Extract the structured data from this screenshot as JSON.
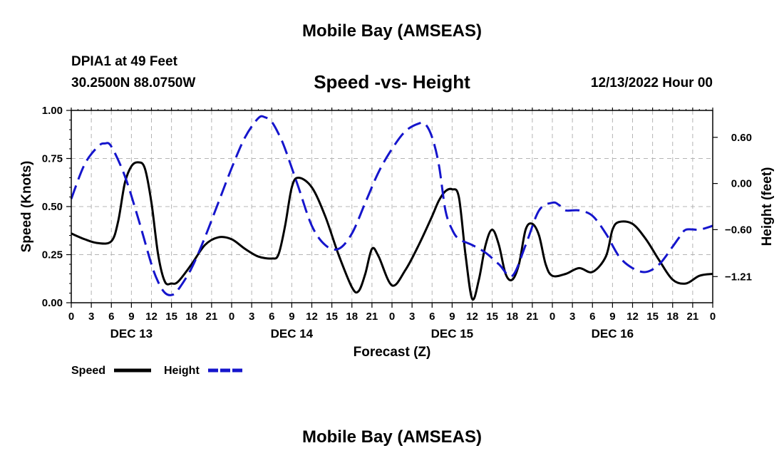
{
  "header": {
    "title": "Mobile Bay (AMSEAS)",
    "station": "DPIA1 at 49 Feet",
    "coordinates": "30.2500N  88.0750W",
    "subtitle": "Speed -vs- Height",
    "datetime": "12/13/2022 Hour 00",
    "bottom_title": "Mobile Bay (AMSEAS)"
  },
  "chart_data": {
    "type": "line",
    "xlabel": "Forecast (Z)",
    "ylabel_left": "Speed (Knots)",
    "ylabel_right": "Height (feet)",
    "x_hours_range": [
      0,
      96
    ],
    "ylim_left": [
      0,
      1.0
    ],
    "ylim_right": [
      -1.55,
      0.95
    ],
    "left_ticks": [
      "0.00",
      "0.25",
      "0.50",
      "0.75",
      "1.00"
    ],
    "left_tick_values": [
      0,
      0.25,
      0.5,
      0.75,
      1.0
    ],
    "right_ticks": [
      "0.60",
      "0.00",
      "−0.60",
      "−1.21"
    ],
    "right_tick_values": [
      0.6,
      0.0,
      -0.6,
      -1.21
    ],
    "x_tick_labels": [
      "0",
      "3",
      "6",
      "9",
      "12",
      "15",
      "18",
      "21",
      "0",
      "3",
      "6",
      "9",
      "12",
      "15",
      "18",
      "21",
      "0",
      "3",
      "6",
      "9",
      "12",
      "15",
      "18",
      "21",
      "0",
      "3",
      "6",
      "9",
      "12",
      "15",
      "18",
      "21",
      "0"
    ],
    "day_labels": [
      {
        "label": "DEC 13",
        "hour": 9
      },
      {
        "label": "DEC 14",
        "hour": 33
      },
      {
        "label": "DEC 15",
        "hour": 57
      },
      {
        "label": "DEC 16",
        "hour": 81
      }
    ],
    "series": [
      {
        "name": "Speed",
        "axis": "left",
        "color": "#000000",
        "style": "solid",
        "x": [
          0,
          2,
          4,
          6,
          7,
          8,
          9,
          10,
          11,
          12,
          13,
          14,
          15,
          16,
          18,
          20,
          22,
          24,
          26,
          28,
          30,
          31,
          32,
          33,
          34,
          36,
          38,
          40,
          42,
          43,
          44,
          45,
          46,
          48,
          50,
          52,
          54,
          55,
          56,
          57,
          58,
          59,
          60,
          61,
          62,
          63,
          64,
          65,
          66,
          67,
          68,
          69,
          70,
          71,
          72,
          74,
          76,
          78,
          80,
          81,
          82,
          84,
          86,
          88,
          90,
          92,
          94,
          96
        ],
        "y": [
          0.36,
          0.33,
          0.31,
          0.32,
          0.42,
          0.62,
          0.71,
          0.73,
          0.7,
          0.52,
          0.25,
          0.11,
          0.1,
          0.11,
          0.2,
          0.3,
          0.34,
          0.33,
          0.28,
          0.24,
          0.23,
          0.25,
          0.4,
          0.6,
          0.65,
          0.6,
          0.45,
          0.25,
          0.08,
          0.06,
          0.15,
          0.28,
          0.24,
          0.09,
          0.17,
          0.3,
          0.45,
          0.53,
          0.58,
          0.59,
          0.55,
          0.25,
          0.02,
          0.12,
          0.3,
          0.38,
          0.3,
          0.15,
          0.12,
          0.2,
          0.38,
          0.41,
          0.35,
          0.2,
          0.14,
          0.15,
          0.18,
          0.16,
          0.24,
          0.38,
          0.42,
          0.41,
          0.33,
          0.22,
          0.12,
          0.1,
          0.14,
          0.15
        ]
      },
      {
        "name": "Height",
        "axis": "right",
        "color": "#1515cc",
        "style": "dashed",
        "x": [
          0,
          2,
          4,
          5,
          6,
          8,
          10,
          12,
          13,
          14,
          15,
          16,
          18,
          20,
          22,
          24,
          26,
          28,
          29,
          30,
          31,
          32,
          34,
          36,
          38,
          40,
          42,
          44,
          46,
          48,
          50,
          52,
          53,
          54,
          55,
          56,
          57,
          58,
          60,
          62,
          64,
          66,
          68,
          70,
          72,
          73,
          74,
          76,
          78,
          80,
          82,
          84,
          86,
          88,
          90,
          91,
          92,
          94,
          96
        ],
        "y": [
          -0.2,
          0.25,
          0.48,
          0.52,
          0.48,
          0.1,
          -0.45,
          -1.05,
          -1.28,
          -1.42,
          -1.45,
          -1.38,
          -1.1,
          -0.7,
          -0.25,
          0.2,
          0.6,
          0.85,
          0.86,
          0.8,
          0.65,
          0.45,
          -0.05,
          -0.55,
          -0.8,
          -0.85,
          -0.65,
          -0.25,
          0.15,
          0.45,
          0.68,
          0.78,
          0.77,
          0.6,
          0.25,
          -0.35,
          -0.6,
          -0.72,
          -0.8,
          -0.9,
          -1.05,
          -1.2,
          -0.8,
          -0.35,
          -0.25,
          -0.28,
          -0.35,
          -0.35,
          -0.42,
          -0.65,
          -0.95,
          -1.1,
          -1.15,
          -1.05,
          -0.82,
          -0.7,
          -0.6,
          -0.6,
          -0.55
        ]
      }
    ],
    "legend": [
      {
        "label": "Speed",
        "color": "#000000",
        "style": "solid"
      },
      {
        "label": "Height",
        "color": "#1515cc",
        "style": "dashed"
      }
    ],
    "grid": true,
    "legend_position": "bottom-left"
  }
}
